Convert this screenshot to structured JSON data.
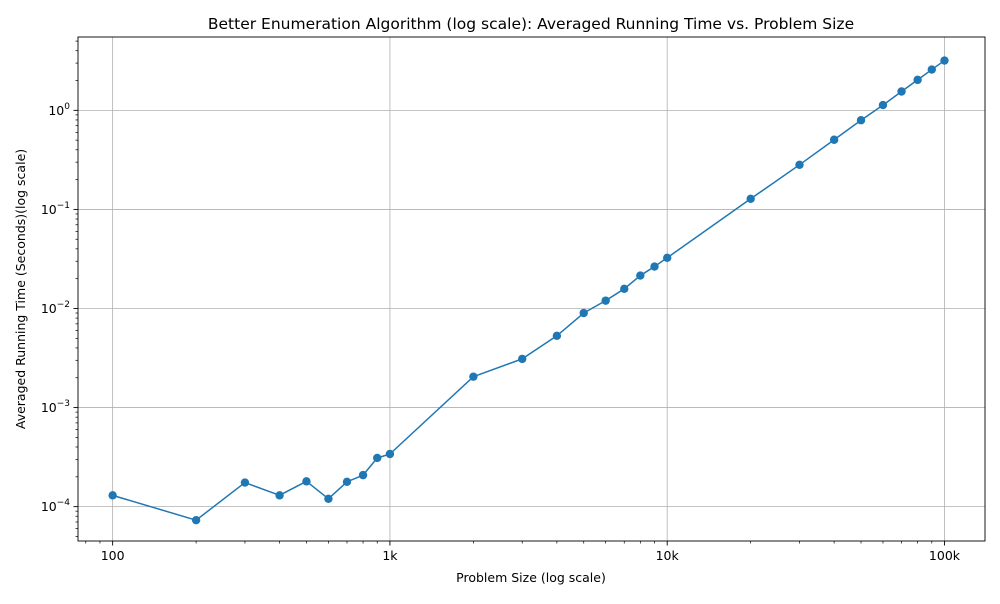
{
  "colors": {
    "line": "#1f77b4",
    "grid": "#b0b0b0",
    "axes": "#000000",
    "background": "#ffffff"
  },
  "chart_data": {
    "type": "line",
    "title": "Better Enumeration Algorithm (log scale): Averaged Running Time vs. Problem Size",
    "xlabel": "Problem Size (log scale)",
    "ylabel": "Averaged Running Time (Seconds)(log scale)",
    "xscale": "log",
    "yscale": "log",
    "grid": true,
    "markers": "circle",
    "xlim": [
      75,
      140000
    ],
    "ylim": [
      4.5e-05,
      5.5
    ],
    "x_ticks": [
      {
        "value": 100,
        "label": "100"
      },
      {
        "value": 1000,
        "label": "1k"
      },
      {
        "value": 10000,
        "label": "10k"
      },
      {
        "value": 100000,
        "label": "100k"
      }
    ],
    "y_ticks": [
      {
        "value": 0.0001,
        "base": "10",
        "exp": "−4"
      },
      {
        "value": 0.001,
        "base": "10",
        "exp": "−3"
      },
      {
        "value": 0.01,
        "base": "10",
        "exp": "−2"
      },
      {
        "value": 0.1,
        "base": "10",
        "exp": "−1"
      },
      {
        "value": 1,
        "base": "10",
        "exp": "0"
      }
    ],
    "series": [
      {
        "x": [
          100,
          200,
          300,
          400,
          500,
          600,
          700,
          800,
          900,
          1000,
          2000,
          3000,
          4000,
          5000,
          6000,
          7000,
          8000,
          9000,
          10000,
          20000,
          30000,
          40000,
          50000,
          60000,
          70000,
          80000,
          90000,
          100000
        ],
        "y": [
          0.00013,
          7.3e-05,
          0.000175,
          0.00013,
          0.00018,
          0.00012,
          0.000178,
          0.000208,
          0.00031,
          0.00034,
          0.00205,
          0.0031,
          0.0053,
          0.009,
          0.012,
          0.0158,
          0.0215,
          0.0265,
          0.0325,
          0.128,
          0.282,
          0.505,
          0.795,
          1.13,
          1.55,
          2.03,
          2.58,
          3.18
        ]
      }
    ]
  }
}
